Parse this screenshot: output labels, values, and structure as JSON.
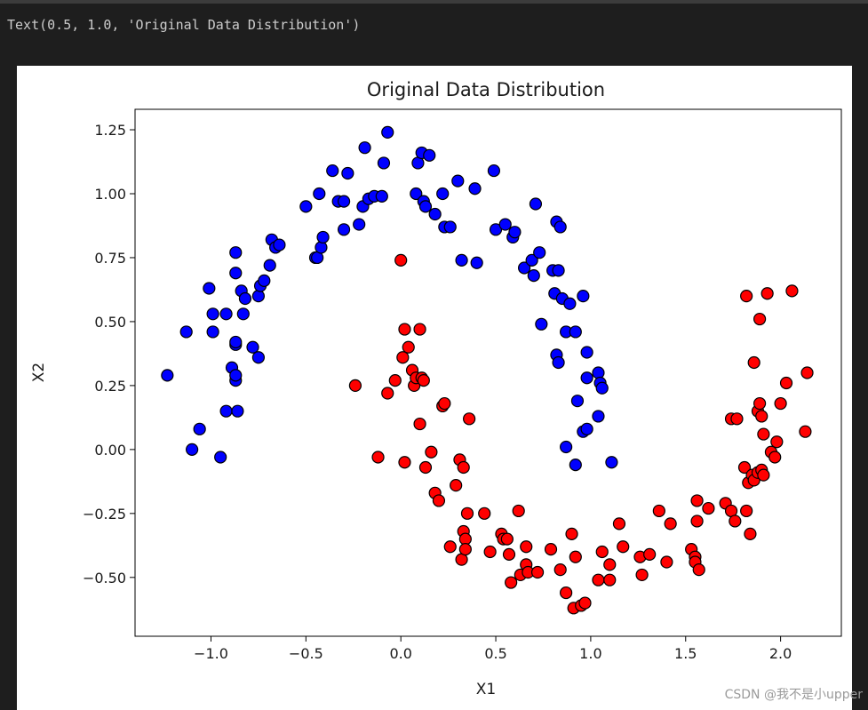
{
  "output_text": "Text(0.5, 1.0, 'Original Data Distribution')",
  "watermark": "CSDN @我不是小upper",
  "chart_data": {
    "type": "scatter",
    "title": "Original Data Distribution",
    "xlabel": "X1",
    "ylabel": "X2",
    "xlim": [
      -1.4,
      2.32
    ],
    "ylim": [
      -0.73,
      1.33
    ],
    "x_ticks": [
      -1.0,
      -0.5,
      0.0,
      0.5,
      1.0,
      1.5,
      2.0
    ],
    "x_tick_labels": [
      "−1.0",
      "−0.5",
      "0.0",
      "0.5",
      "1.0",
      "1.5",
      "2.0"
    ],
    "y_ticks": [
      -0.5,
      -0.25,
      0.0,
      0.25,
      0.5,
      0.75,
      1.0,
      1.25
    ],
    "y_tick_labels": [
      "−0.50",
      "−0.25",
      "0.00",
      "0.25",
      "0.50",
      "0.75",
      "1.00",
      "1.25"
    ],
    "grid": false,
    "series": [
      {
        "color": "#0000ff",
        "points": [
          [
            -1.23,
            0.29
          ],
          [
            -1.13,
            0.46
          ],
          [
            -1.1,
            0.0
          ],
          [
            -1.06,
            0.08
          ],
          [
            -1.01,
            0.63
          ],
          [
            -0.99,
            0.53
          ],
          [
            -0.99,
            0.46
          ],
          [
            -0.95,
            -0.03
          ],
          [
            -0.92,
            0.53
          ],
          [
            -0.92,
            0.15
          ],
          [
            -0.89,
            0.32
          ],
          [
            -0.87,
            0.27
          ],
          [
            -0.87,
            0.29
          ],
          [
            -0.87,
            0.41
          ],
          [
            -0.87,
            0.42
          ],
          [
            -0.87,
            0.69
          ],
          [
            -0.87,
            0.77
          ],
          [
            -0.86,
            0.15
          ],
          [
            -0.84,
            0.62
          ],
          [
            -0.83,
            0.53
          ],
          [
            -0.82,
            0.59
          ],
          [
            -0.78,
            0.4
          ],
          [
            -0.75,
            0.36
          ],
          [
            -0.75,
            0.6
          ],
          [
            -0.74,
            0.64
          ],
          [
            -0.72,
            0.66
          ],
          [
            -0.69,
            0.72
          ],
          [
            -0.68,
            0.82
          ],
          [
            -0.66,
            0.79
          ],
          [
            -0.64,
            0.8
          ],
          [
            -0.5,
            0.95
          ],
          [
            -0.45,
            0.75
          ],
          [
            -0.44,
            0.75
          ],
          [
            -0.43,
            1.0
          ],
          [
            -0.42,
            0.79
          ],
          [
            -0.41,
            0.83
          ],
          [
            -0.36,
            1.09
          ],
          [
            -0.33,
            0.97
          ],
          [
            -0.3,
            0.86
          ],
          [
            -0.3,
            0.97
          ],
          [
            -0.28,
            1.08
          ],
          [
            -0.22,
            0.88
          ],
          [
            -0.2,
            0.95
          ],
          [
            -0.19,
            1.18
          ],
          [
            -0.17,
            0.98
          ],
          [
            -0.14,
            0.99
          ],
          [
            -0.1,
            0.99
          ],
          [
            -0.09,
            1.12
          ],
          [
            -0.07,
            1.24
          ],
          [
            0.08,
            1.0
          ],
          [
            0.09,
            1.12
          ],
          [
            0.11,
            1.16
          ],
          [
            0.12,
            0.97
          ],
          [
            0.13,
            0.95
          ],
          [
            0.15,
            1.15
          ],
          [
            0.18,
            0.92
          ],
          [
            0.22,
            1.0
          ],
          [
            0.23,
            0.87
          ],
          [
            0.26,
            0.87
          ],
          [
            0.3,
            1.05
          ],
          [
            0.32,
            0.74
          ],
          [
            0.39,
            1.02
          ],
          [
            0.4,
            0.73
          ],
          [
            0.49,
            1.09
          ],
          [
            0.5,
            0.86
          ],
          [
            0.55,
            0.88
          ],
          [
            0.59,
            0.83
          ],
          [
            0.6,
            0.85
          ],
          [
            0.65,
            0.71
          ],
          [
            0.69,
            0.74
          ],
          [
            0.7,
            0.68
          ],
          [
            0.71,
            0.96
          ],
          [
            0.73,
            0.77
          ],
          [
            0.74,
            0.49
          ],
          [
            0.8,
            0.7
          ],
          [
            0.81,
            0.61
          ],
          [
            0.82,
            0.89
          ],
          [
            0.82,
            0.37
          ],
          [
            0.83,
            0.7
          ],
          [
            0.84,
            0.87
          ],
          [
            0.85,
            0.59
          ],
          [
            0.87,
            0.46
          ],
          [
            0.87,
            0.01
          ],
          [
            0.89,
            0.57
          ],
          [
            0.92,
            0.46
          ],
          [
            0.92,
            -0.06
          ],
          [
            0.93,
            0.19
          ],
          [
            0.96,
            0.6
          ],
          [
            0.96,
            0.07
          ],
          [
            0.98,
            0.08
          ],
          [
            0.98,
            0.28
          ],
          [
            0.98,
            0.38
          ],
          [
            1.04,
            0.13
          ],
          [
            1.04,
            0.3
          ],
          [
            1.05,
            0.26
          ],
          [
            1.06,
            0.24
          ],
          [
            1.11,
            -0.05
          ],
          [
            0.83,
            0.34
          ]
        ]
      },
      {
        "color": "#ff0000",
        "points": [
          [
            -0.24,
            0.25
          ],
          [
            -0.12,
            -0.03
          ],
          [
            -0.07,
            0.22
          ],
          [
            -0.03,
            0.27
          ],
          [
            0.0,
            0.74
          ],
          [
            0.01,
            0.36
          ],
          [
            0.02,
            0.47
          ],
          [
            0.02,
            -0.05
          ],
          [
            0.04,
            0.4
          ],
          [
            0.06,
            0.31
          ],
          [
            0.07,
            0.25
          ],
          [
            0.08,
            0.28
          ],
          [
            0.1,
            0.1
          ],
          [
            0.1,
            0.47
          ],
          [
            0.11,
            0.28
          ],
          [
            0.12,
            0.27
          ],
          [
            0.13,
            -0.07
          ],
          [
            0.16,
            -0.01
          ],
          [
            0.18,
            -0.17
          ],
          [
            0.2,
            -0.2
          ],
          [
            0.22,
            0.17
          ],
          [
            0.23,
            0.18
          ],
          [
            0.26,
            -0.38
          ],
          [
            0.29,
            -0.14
          ],
          [
            0.31,
            -0.04
          ],
          [
            0.32,
            -0.43
          ],
          [
            0.33,
            -0.07
          ],
          [
            0.33,
            -0.32
          ],
          [
            0.34,
            -0.35
          ],
          [
            0.34,
            -0.39
          ],
          [
            0.35,
            -0.25
          ],
          [
            0.36,
            0.12
          ],
          [
            0.44,
            -0.25
          ],
          [
            0.47,
            -0.4
          ],
          [
            0.53,
            -0.33
          ],
          [
            0.54,
            -0.35
          ],
          [
            0.56,
            -0.35
          ],
          [
            0.57,
            -0.41
          ],
          [
            0.58,
            -0.52
          ],
          [
            0.62,
            -0.24
          ],
          [
            0.63,
            -0.49
          ],
          [
            0.66,
            -0.38
          ],
          [
            0.66,
            -0.45
          ],
          [
            0.67,
            -0.48
          ],
          [
            0.72,
            -0.48
          ],
          [
            0.79,
            -0.39
          ],
          [
            0.84,
            -0.47
          ],
          [
            0.87,
            -0.56
          ],
          [
            0.9,
            -0.33
          ],
          [
            0.91,
            -0.62
          ],
          [
            0.92,
            -0.42
          ],
          [
            0.95,
            -0.61
          ],
          [
            0.97,
            -0.6
          ],
          [
            1.04,
            -0.51
          ],
          [
            1.06,
            -0.4
          ],
          [
            1.1,
            -0.51
          ],
          [
            1.1,
            -0.45
          ],
          [
            1.15,
            -0.29
          ],
          [
            1.17,
            -0.38
          ],
          [
            1.26,
            -0.42
          ],
          [
            1.27,
            -0.49
          ],
          [
            1.31,
            -0.41
          ],
          [
            1.36,
            -0.24
          ],
          [
            1.4,
            -0.44
          ],
          [
            1.42,
            -0.29
          ],
          [
            1.53,
            -0.39
          ],
          [
            1.55,
            -0.42
          ],
          [
            1.55,
            -0.44
          ],
          [
            1.56,
            -0.2
          ],
          [
            1.56,
            -0.28
          ],
          [
            1.57,
            -0.47
          ],
          [
            1.62,
            -0.23
          ],
          [
            1.71,
            -0.21
          ],
          [
            1.74,
            -0.24
          ],
          [
            1.74,
            0.12
          ],
          [
            1.76,
            -0.28
          ],
          [
            1.77,
            0.12
          ],
          [
            1.81,
            -0.07
          ],
          [
            1.82,
            -0.24
          ],
          [
            1.82,
            0.6
          ],
          [
            1.83,
            -0.13
          ],
          [
            1.84,
            -0.33
          ],
          [
            1.85,
            -0.1
          ],
          [
            1.86,
            -0.12
          ],
          [
            1.86,
            0.34
          ],
          [
            1.88,
            0.15
          ],
          [
            1.88,
            -0.09
          ],
          [
            1.89,
            0.18
          ],
          [
            1.89,
            0.51
          ],
          [
            1.9,
            0.13
          ],
          [
            1.9,
            -0.08
          ],
          [
            1.91,
            0.06
          ],
          [
            1.91,
            -0.1
          ],
          [
            1.93,
            0.61
          ],
          [
            1.95,
            -0.01
          ],
          [
            1.97,
            -0.03
          ],
          [
            1.98,
            0.03
          ],
          [
            2.0,
            0.18
          ],
          [
            2.03,
            0.26
          ],
          [
            2.06,
            0.62
          ],
          [
            2.13,
            0.07
          ],
          [
            2.14,
            0.3
          ]
        ]
      }
    ]
  }
}
